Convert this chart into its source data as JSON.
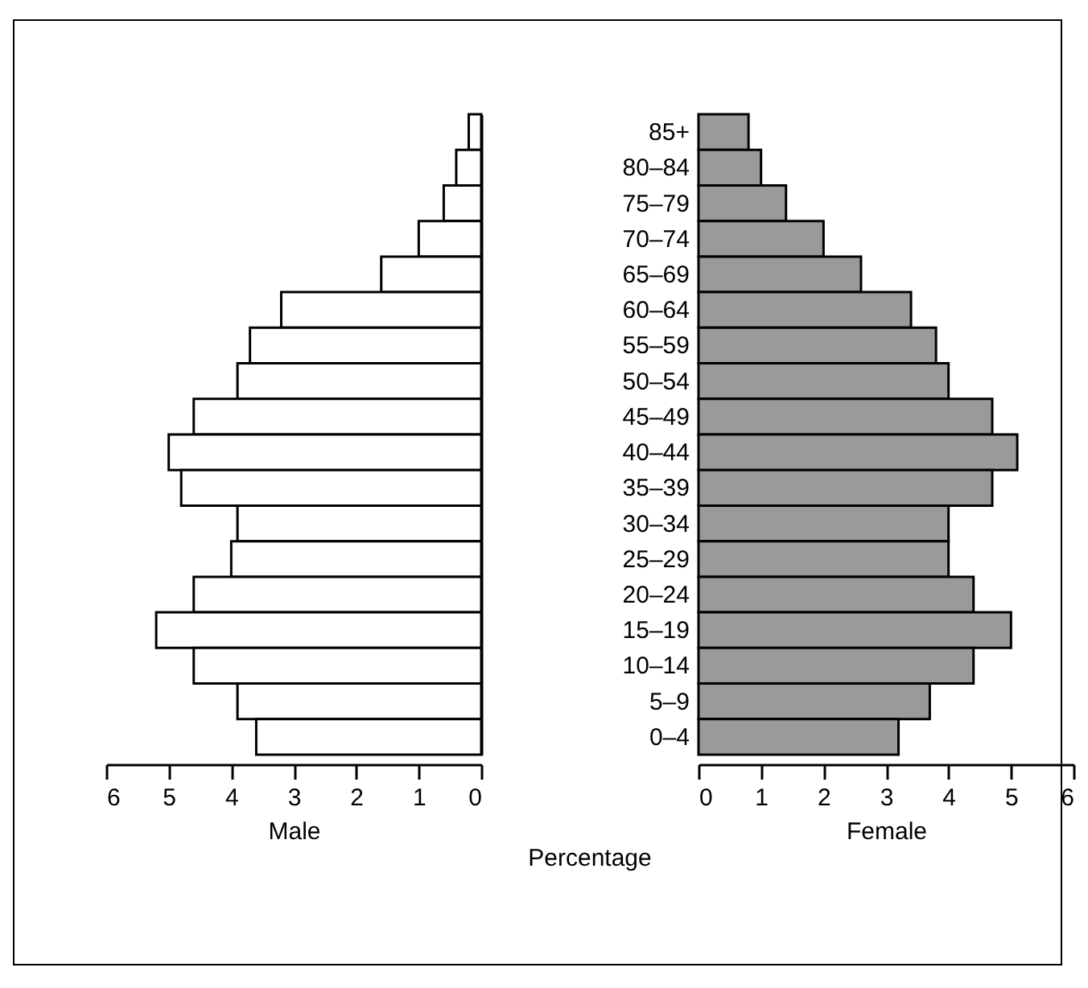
{
  "chart_data": [
    {
      "type": "bar",
      "orientation": "horizontal",
      "categories": [
        null,
        null,
        null,
        null,
        null,
        null,
        null,
        null,
        null,
        null,
        null,
        null,
        null,
        null,
        null,
        null,
        null,
        null
      ],
      "xlabel": "Male",
      "color": "#ffffff",
      "values": [
        0.2,
        0.4,
        0.6,
        1.0,
        1.6,
        3.2,
        3.7,
        3.9,
        4.6,
        5.0,
        4.8,
        3.9,
        4.0,
        4.6,
        5.2,
        4.6,
        3.9,
        3.6
      ],
      "xlim": [
        6,
        0
      ],
      "xticks": [
        6,
        5,
        4,
        3,
        2,
        1,
        0
      ],
      "tick_labels": "x"
    },
    {
      "type": "bar",
      "orientation": "horizontal",
      "categories": [
        "85+",
        "80–84",
        "75–79",
        "70–74",
        "65–69",
        "60–64",
        "55–59",
        "50–54",
        "45–49",
        "40–44",
        "35–39",
        "30–34",
        "25–29",
        "20–24",
        "15–19",
        "10–14",
        "5–9",
        "0–4"
      ],
      "xlabel": "Female",
      "color": "#9a9a9a",
      "values": [
        0.8,
        1.0,
        1.4,
        2.0,
        2.6,
        3.4,
        3.8,
        4.0,
        4.7,
        5.1,
        4.7,
        4.0,
        4.0,
        4.4,
        5.0,
        4.4,
        3.7,
        3.2
      ],
      "xlim": [
        0,
        6
      ],
      "xticks": [
        0,
        1,
        2,
        3,
        4,
        5,
        6
      ],
      "annotations": [
        "Percentage"
      ]
    }
  ]
}
